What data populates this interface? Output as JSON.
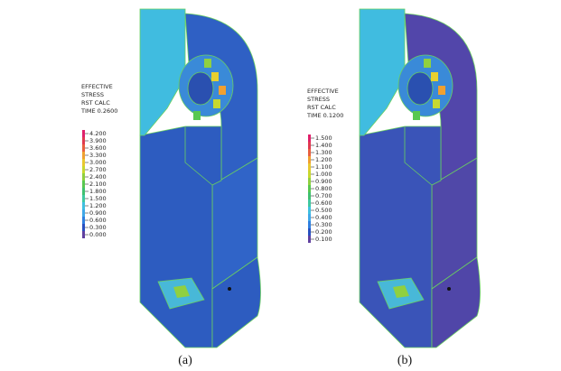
{
  "panels": [
    {
      "caption": "(a)",
      "legend": {
        "header": [
          "EFFECTIVE",
          "STRESS",
          "RST CALC",
          "TIME 0.2600"
        ],
        "labels": [
          "4.200",
          "3.900",
          "3.600",
          "3.300",
          "3.000",
          "2.700",
          "2.400",
          "2.100",
          "1.800",
          "1.500",
          "1.200",
          "0.900",
          "0.600",
          "0.300",
          "0.000"
        ]
      }
    },
    {
      "caption": "(b)",
      "legend": {
        "header": [
          "EFFECTIVE",
          "STRESS",
          "RST CALC",
          "TIME 0.1200"
        ],
        "labels": [
          "1.500",
          "1.400",
          "1.300",
          "1.200",
          "1.100",
          "1.000",
          "0.900",
          "0.800",
          "0.700",
          "0.600",
          "0.500",
          "0.400",
          "0.300",
          "0.200",
          "0.100"
        ]
      }
    }
  ]
}
